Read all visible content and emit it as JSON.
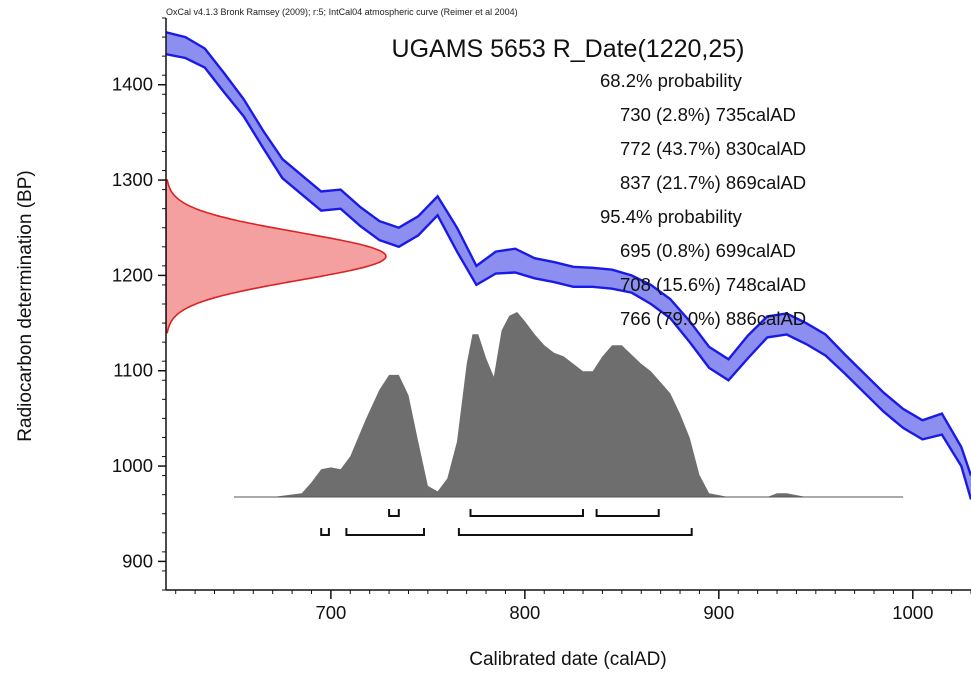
{
  "credit": "OxCal v4.1.3 Bronk Ramsey (2009); r:5; IntCal04 atmospheric curve (Reimer et al 2004)",
  "chart_data": {
    "type": "area",
    "title": "UGAMS 5653 R_Date(1220,25)",
    "xlabel": "Calibrated date (calAD)",
    "ylabel": "Radiocarbon determination (BP)",
    "xlim": [
      615,
      1030
    ],
    "ylim": [
      870,
      1470
    ],
    "x_ticks": [
      700,
      800,
      900,
      1000
    ],
    "y_ticks": [
      900,
      1000,
      1100,
      1200,
      1300,
      1400
    ],
    "grid": false,
    "colors": {
      "curve_fill": "#8c8ef0",
      "curve_line": "#1a1ae6",
      "date_fill": "#f4a0a0",
      "date_line": "#dd2222",
      "posterior_fill": "#6e6e6e"
    },
    "radiocarbon_date": {
      "bp": 1220,
      "error": 25
    },
    "calibration_curve": {
      "name": "IntCal04 atmospheric curve",
      "x": [
        615,
        625,
        635,
        645,
        655,
        665,
        675,
        685,
        695,
        705,
        715,
        725,
        735,
        745,
        755,
        765,
        775,
        785,
        795,
        805,
        815,
        825,
        835,
        845,
        855,
        865,
        875,
        885,
        895,
        905,
        915,
        925,
        935,
        945,
        955,
        965,
        975,
        985,
        995,
        1005,
        1015,
        1025,
        1030
      ],
      "upper": [
        1455,
        1450,
        1438,
        1412,
        1385,
        1352,
        1322,
        1305,
        1288,
        1290,
        1272,
        1257,
        1250,
        1262,
        1283,
        1250,
        1210,
        1225,
        1228,
        1218,
        1214,
        1209,
        1208,
        1206,
        1200,
        1190,
        1175,
        1152,
        1125,
        1112,
        1137,
        1157,
        1160,
        1150,
        1138,
        1117,
        1097,
        1077,
        1060,
        1048,
        1055,
        1020,
        990
      ],
      "lower": [
        1432,
        1428,
        1418,
        1392,
        1367,
        1334,
        1302,
        1285,
        1268,
        1270,
        1252,
        1237,
        1230,
        1242,
        1263,
        1225,
        1190,
        1202,
        1203,
        1197,
        1193,
        1188,
        1188,
        1186,
        1182,
        1170,
        1155,
        1130,
        1103,
        1090,
        1113,
        1135,
        1138,
        1128,
        1116,
        1097,
        1077,
        1057,
        1040,
        1028,
        1033,
        1000,
        965
      ]
    },
    "calibrated_distribution": {
      "x": [
        650,
        670,
        685,
        690,
        695,
        700,
        705,
        710,
        718,
        725,
        730,
        735,
        740,
        745,
        750,
        755,
        760,
        765,
        770,
        773,
        776,
        780,
        784,
        788,
        792,
        796,
        800,
        805,
        810,
        815,
        820,
        825,
        830,
        835,
        840,
        845,
        850,
        855,
        860,
        865,
        870,
        875,
        880,
        885,
        890,
        895,
        905,
        925,
        930,
        935,
        945,
        995
      ],
      "density": [
        0,
        0,
        0.02,
        0.08,
        0.15,
        0.16,
        0.15,
        0.22,
        0.42,
        0.58,
        0.66,
        0.66,
        0.55,
        0.3,
        0.06,
        0.03,
        0.1,
        0.3,
        0.72,
        0.88,
        0.88,
        0.75,
        0.65,
        0.9,
        0.98,
        1.0,
        0.95,
        0.88,
        0.82,
        0.78,
        0.76,
        0.72,
        0.68,
        0.68,
        0.76,
        0.82,
        0.82,
        0.77,
        0.72,
        0.68,
        0.62,
        0.56,
        0.45,
        0.32,
        0.12,
        0.02,
        0,
        0,
        0.02,
        0.02,
        0,
        0
      ]
    },
    "ranges_68": {
      "label": "68.2% probability",
      "ranges": [
        {
          "from": 730,
          "to": 735,
          "text": "730 (2.8%) 735calAD"
        },
        {
          "from": 772,
          "to": 830,
          "text": "772 (43.7%) 830calAD"
        },
        {
          "from": 837,
          "to": 869,
          "text": "837 (21.7%) 869calAD"
        }
      ]
    },
    "ranges_95": {
      "label": "95.4% probability",
      "ranges": [
        {
          "from": 695,
          "to": 699,
          "text": "695 (0.8%) 699calAD"
        },
        {
          "from": 708,
          "to": 748,
          "text": "708 (15.6%) 748calAD"
        },
        {
          "from": 766,
          "to": 886,
          "text": "766 (79.0%) 886calAD"
        }
      ]
    }
  }
}
